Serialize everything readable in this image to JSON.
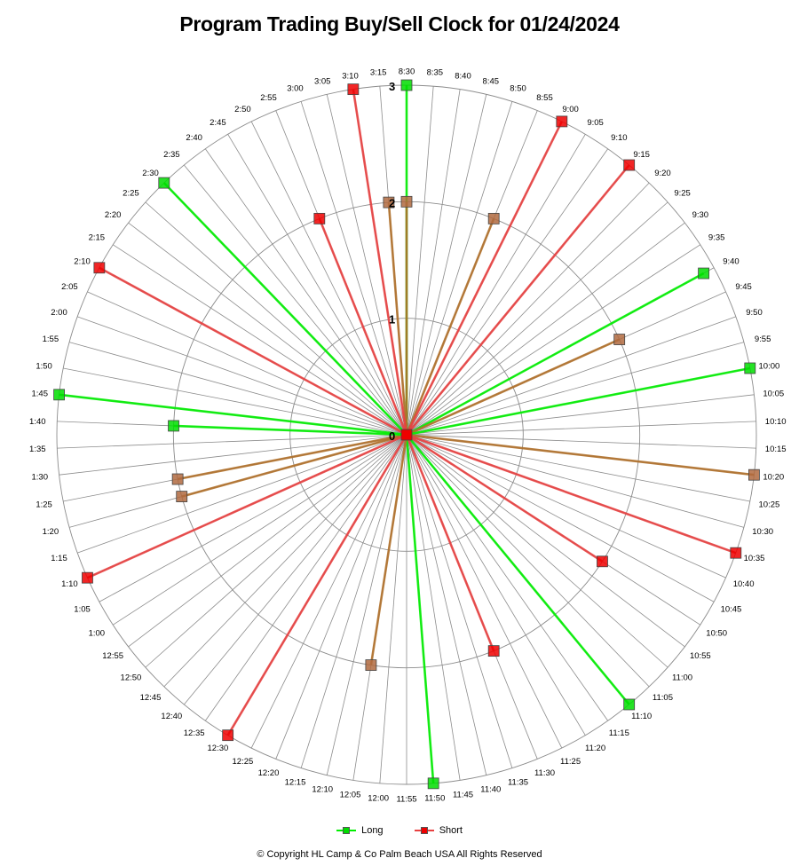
{
  "chart_data": {
    "type": "radar",
    "title": "Program Trading Buy/Sell Clock for 01/24/2024",
    "categories": [
      "8:30",
      "8:35",
      "8:40",
      "8:45",
      "8:50",
      "8:55",
      "9:00",
      "9:05",
      "9:10",
      "9:15",
      "9:20",
      "9:25",
      "9:30",
      "9:35",
      "9:40",
      "9:45",
      "9:50",
      "9:55",
      "10:00",
      "10:05",
      "10:10",
      "10:15",
      "10:20",
      "10:25",
      "10:30",
      "10:35",
      "10:40",
      "10:45",
      "10:50",
      "10:55",
      "11:00",
      "11:05",
      "11:10",
      "11:15",
      "11:20",
      "11:25",
      "11:30",
      "11:35",
      "11:40",
      "11:45",
      "11:50",
      "11:55",
      "12:00",
      "12:05",
      "12:10",
      "12:15",
      "12:20",
      "12:25",
      "12:30",
      "12:35",
      "12:40",
      "12:45",
      "12:50",
      "12:55",
      "1:00",
      "1:05",
      "1:10",
      "1:15",
      "1:20",
      "1:25",
      "1:30",
      "1:35",
      "1:40",
      "1:45",
      "1:50",
      "1:55",
      "2:00",
      "2:05",
      "2:10",
      "2:15",
      "2:20",
      "2:25",
      "2:30",
      "2:35",
      "2:40",
      "2:45",
      "2:50",
      "2:55",
      "3:00",
      "3:05",
      "3:10",
      "3:15"
    ],
    "radial_ticks": [
      "0",
      "1",
      "2",
      "3"
    ],
    "rmax": 3,
    "grid": true,
    "legend_position": "bottom",
    "series": [
      {
        "name": "Long",
        "color": "#00ee00",
        "marker": "#00dd00",
        "points": [
          {
            "time": "8:30",
            "value": 3
          },
          {
            "time": "8:30",
            "value": 2
          },
          {
            "time": "8:55",
            "value": 2
          },
          {
            "time": "9:40",
            "value": 2.9
          },
          {
            "time": "9:45",
            "value": 2
          },
          {
            "time": "10:00",
            "value": 3
          },
          {
            "time": "10:20",
            "value": 3
          },
          {
            "time": "11:10",
            "value": 3
          },
          {
            "time": "11:50",
            "value": 3
          },
          {
            "time": "12:05",
            "value": 2
          },
          {
            "time": "1:20",
            "value": 2
          },
          {
            "time": "1:25",
            "value": 2
          },
          {
            "time": "1:40",
            "value": 2
          },
          {
            "time": "1:45",
            "value": 3
          },
          {
            "time": "2:30",
            "value": 3
          },
          {
            "time": "3:15",
            "value": 2
          }
        ]
      },
      {
        "name": "Short",
        "color": "#e84040",
        "marker": "#ee0000",
        "points": [
          {
            "time": "9:00",
            "value": 3
          },
          {
            "time": "9:15",
            "value": 3
          },
          {
            "time": "10:35",
            "value": 3
          },
          {
            "time": "10:50",
            "value": 2
          },
          {
            "time": "11:30",
            "value": 2
          },
          {
            "time": "12:30",
            "value": 3
          },
          {
            "time": "1:10",
            "value": 3
          },
          {
            "time": "2:10",
            "value": 3
          },
          {
            "time": "2:55",
            "value": 2
          },
          {
            "time": "3:10",
            "value": 3
          }
        ]
      }
    ]
  },
  "legend": {
    "long_label": "Long",
    "short_label": "Short"
  },
  "footer": "© Copyright  HL Camp & Co  Palm Beach  USA All Rights Reserved"
}
